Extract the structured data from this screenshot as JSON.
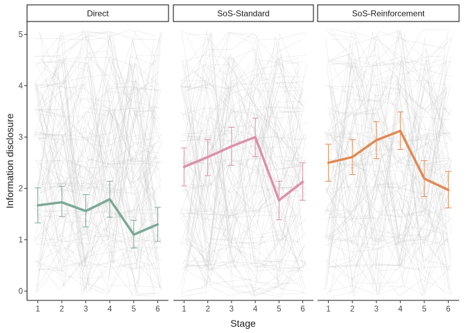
{
  "chart_data": {
    "type": "line",
    "ylabel": "Information disclosure",
    "xlabel": "Stage",
    "x": [
      1,
      2,
      3,
      4,
      5,
      6
    ],
    "xlim": [
      0.55,
      6.45
    ],
    "ylim": [
      -0.18,
      5.25
    ],
    "yticks": [
      0,
      1,
      2,
      3,
      4,
      5
    ],
    "grid": false,
    "background_traces": "many faint light-gray individual participant lines spanning 0 to 5",
    "panels": [
      {
        "label": "Direct",
        "color": "#7aa895",
        "mean": [
          1.67,
          1.73,
          1.56,
          1.79,
          1.1,
          1.3
        ],
        "lower": [
          1.33,
          1.45,
          1.25,
          1.44,
          0.84,
          0.97
        ],
        "upper": [
          2.01,
          2.04,
          1.88,
          2.14,
          1.38,
          1.63
        ]
      },
      {
        "label": "SoS-Standard",
        "color": "#dd8fa8",
        "mean": [
          2.42,
          2.61,
          2.82,
          3.0,
          1.77,
          2.13
        ],
        "lower": [
          2.05,
          2.25,
          2.45,
          2.62,
          1.39,
          1.77
        ],
        "upper": [
          2.79,
          2.95,
          3.19,
          3.37,
          2.14,
          2.5
        ]
      },
      {
        "label": "SoS-Reinforcement",
        "color": "#e18952",
        "mean": [
          2.5,
          2.61,
          2.94,
          3.12,
          2.19,
          1.97
        ],
        "lower": [
          2.14,
          2.27,
          2.58,
          2.76,
          1.84,
          1.62
        ],
        "upper": [
          2.86,
          2.95,
          3.3,
          3.49,
          2.54,
          2.33
        ]
      }
    ]
  }
}
